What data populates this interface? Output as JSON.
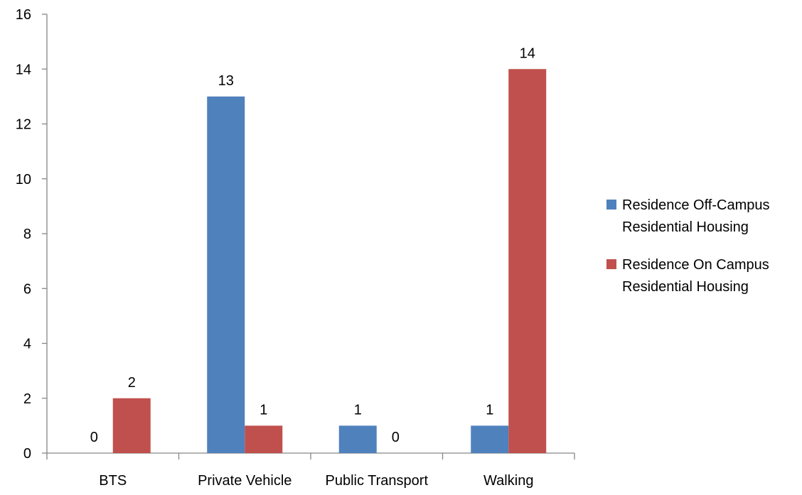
{
  "chart_data": {
    "type": "bar",
    "title": "",
    "xlabel": "",
    "ylabel": "",
    "categories": [
      "BTS",
      "Private Vehicle",
      "Public Transport",
      "Walking"
    ],
    "series": [
      {
        "name": "Residence Off-Campus Residential Housing",
        "legend_lines": [
          "Residence Off-Campus",
          "Residential Housing"
        ],
        "color": "#4F81BD",
        "values": [
          0,
          13,
          1,
          1
        ]
      },
      {
        "name": "Residence On Campus Residential Housing",
        "legend_lines": [
          "Residence On Campus",
          "Residential Housing"
        ],
        "color": "#C0504D",
        "values": [
          2,
          1,
          0,
          14
        ]
      }
    ],
    "ylim": [
      0,
      16
    ],
    "yticks": [
      0,
      2,
      4,
      6,
      8,
      10,
      12,
      14,
      16
    ],
    "data_labels": true,
    "grid": false,
    "legend_position": "right"
  }
}
